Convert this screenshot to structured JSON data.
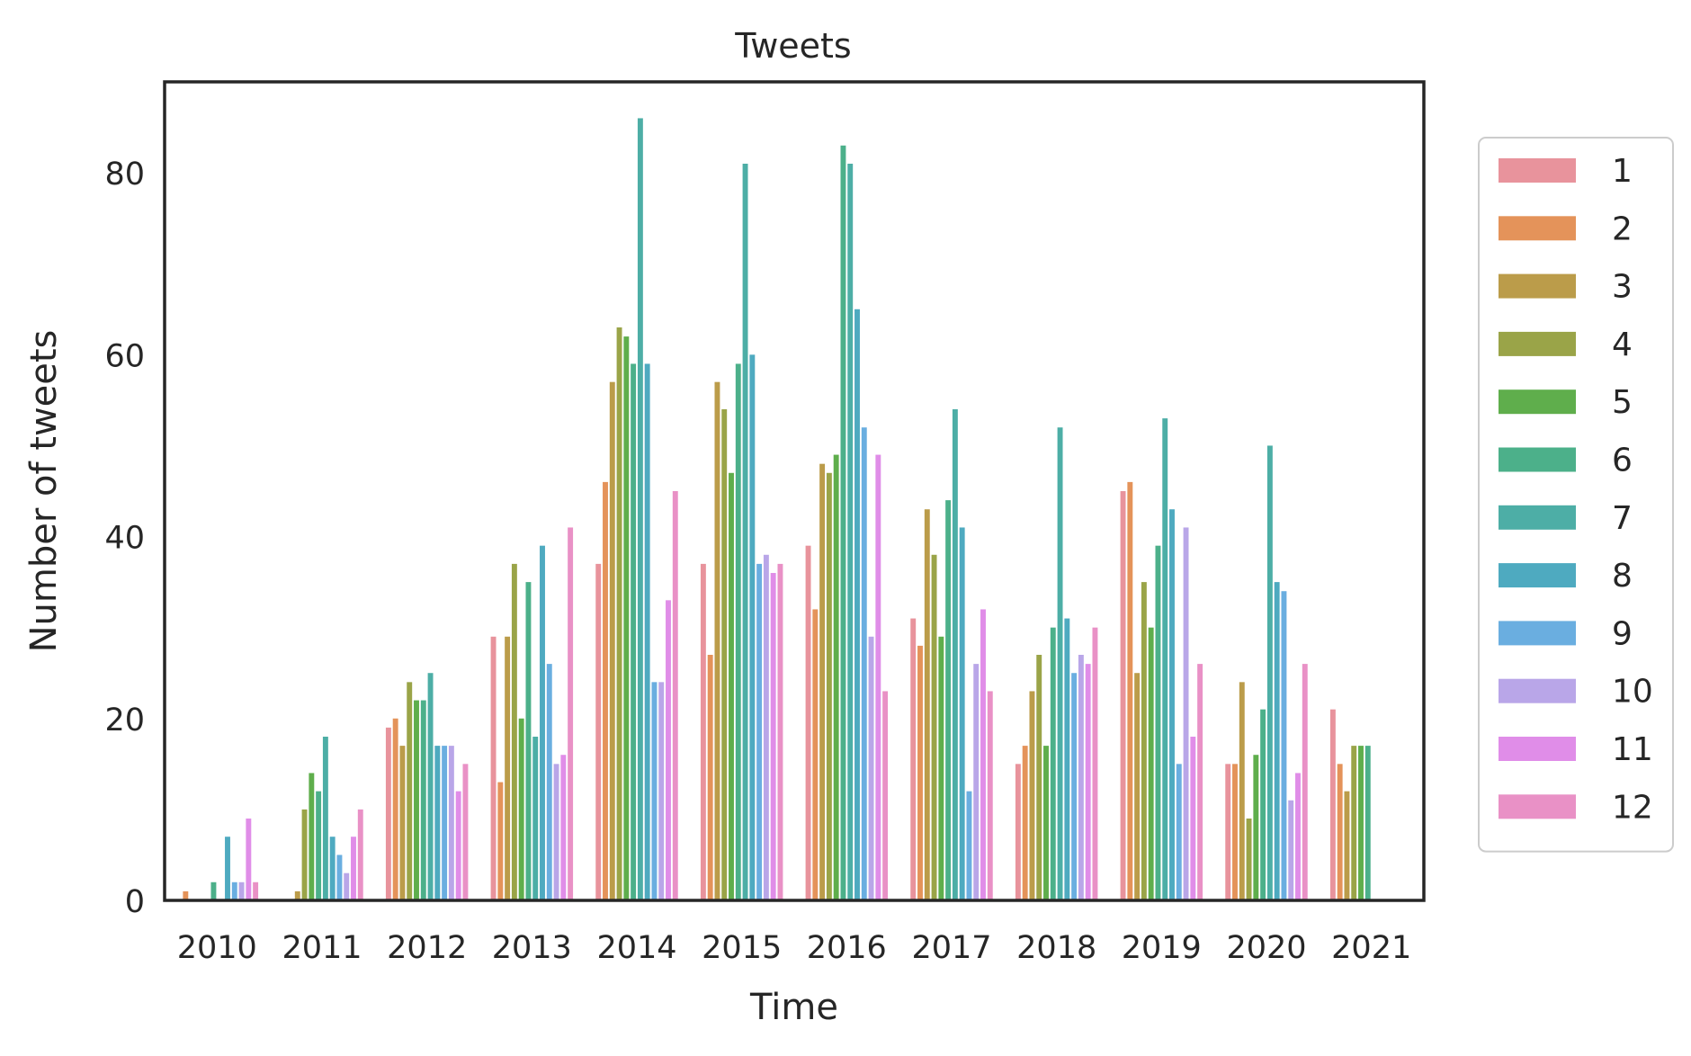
{
  "chart_data": {
    "type": "bar",
    "title": "Tweets",
    "xlabel": "Time",
    "ylabel": "Number of tweets",
    "ylim": [
      0,
      90
    ],
    "yticks": [
      0,
      20,
      40,
      60,
      80
    ],
    "grid": false,
    "legend_position": "right",
    "categories": [
      "2010",
      "2011",
      "2012",
      "2013",
      "2014",
      "2015",
      "2016",
      "2017",
      "2018",
      "2019",
      "2020",
      "2021"
    ],
    "series": [
      {
        "name": "1",
        "color": "#e8939c",
        "values": [
          0,
          0,
          19,
          29,
          37,
          37,
          39,
          31,
          15,
          45,
          15,
          21
        ]
      },
      {
        "name": "2",
        "color": "#e4935a",
        "values": [
          1,
          0,
          20,
          13,
          46,
          27,
          32,
          28,
          17,
          46,
          15,
          15
        ]
      },
      {
        "name": "3",
        "color": "#bb9c4a",
        "values": [
          0,
          1,
          17,
          29,
          57,
          57,
          48,
          43,
          23,
          25,
          24,
          12
        ]
      },
      {
        "name": "4",
        "color": "#9aa448",
        "values": [
          0,
          10,
          24,
          37,
          63,
          54,
          47,
          38,
          27,
          35,
          9,
          17
        ]
      },
      {
        "name": "5",
        "color": "#5fae4c",
        "values": [
          0,
          14,
          22,
          20,
          62,
          47,
          49,
          29,
          17,
          30,
          16,
          17
        ]
      },
      {
        "name": "6",
        "color": "#4cb08a",
        "values": [
          2,
          12,
          22,
          35,
          59,
          59,
          83,
          44,
          30,
          39,
          21,
          17
        ]
      },
      {
        "name": "7",
        "color": "#4daea6",
        "values": [
          0,
          18,
          25,
          18,
          86,
          81,
          81,
          54,
          52,
          53,
          50,
          0
        ]
      },
      {
        "name": "8",
        "color": "#4eaac0",
        "values": [
          7,
          7,
          17,
          39,
          59,
          60,
          65,
          41,
          31,
          43,
          35,
          0
        ]
      },
      {
        "name": "9",
        "color": "#6aaee0",
        "values": [
          2,
          5,
          17,
          26,
          24,
          37,
          52,
          12,
          25,
          15,
          34,
          0
        ]
      },
      {
        "name": "10",
        "color": "#b9a6e8",
        "values": [
          2,
          3,
          17,
          15,
          24,
          38,
          29,
          26,
          27,
          41,
          11,
          0
        ]
      },
      {
        "name": "11",
        "color": "#e08de8",
        "values": [
          9,
          7,
          12,
          16,
          33,
          36,
          49,
          32,
          26,
          18,
          14,
          0
        ]
      },
      {
        "name": "12",
        "color": "#e991c6",
        "values": [
          2,
          10,
          15,
          41,
          45,
          37,
          23,
          23,
          30,
          26,
          26,
          0
        ]
      }
    ]
  }
}
